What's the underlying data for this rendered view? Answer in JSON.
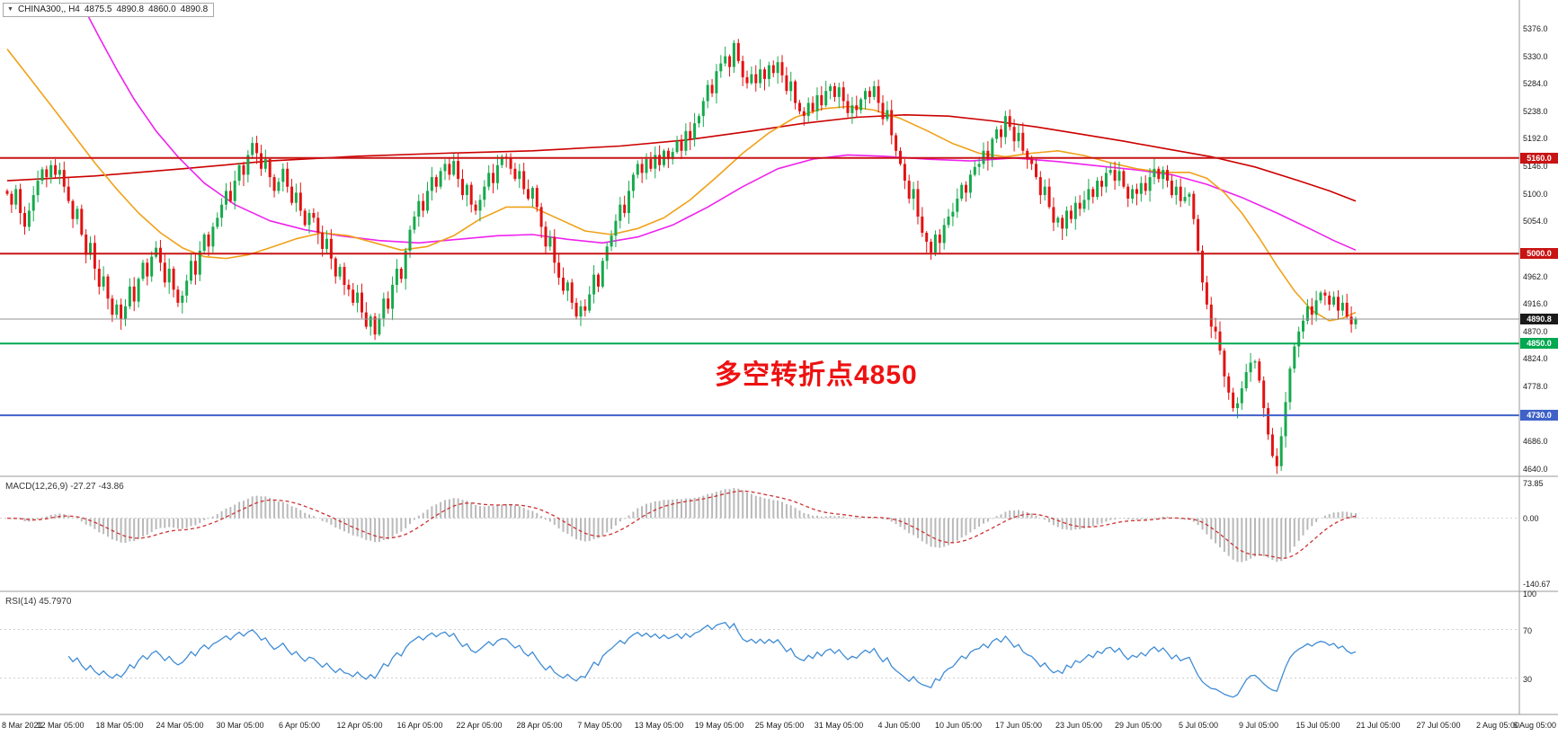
{
  "header": {
    "dropdown_icon": "▼",
    "symbol": "CHINA300,, H4",
    "open": "4875.5",
    "high": "4890.8",
    "low": "4860.0",
    "close": "4890.8"
  },
  "annotation": {
    "text": "多空转折点4850"
  },
  "colors": {
    "candle_up": "#17A94D",
    "candle_down": "#E31212",
    "macd_histogram": "#B9B9B9",
    "macd_signal": "#CC3333",
    "rsi_line": "#3F8CD5",
    "annotation": "#EE1111",
    "divider": "#9A9A9A",
    "level_dotted": "#CFCFCF"
  },
  "chart_data": {
    "type": "candlestick",
    "symbol": "CHINA300",
    "timeframe": "H4",
    "title": "CHINA300 H4 candlestick chart with MACD and RSI",
    "price_axis": {
      "max": 5424,
      "min": 4628,
      "ticks": [
        "5376.0",
        "5330.0",
        "5284.0",
        "5238.0",
        "5192.0",
        "5146.0",
        "5100.0",
        "5054.0",
        "4962.0",
        "4916.0",
        "4870.0",
        "4824.0",
        "4778.0",
        "4686.0",
        "4640.0"
      ]
    },
    "candles": {
      "first_open": 5105,
      "closes": [
        5100,
        5082,
        5108,
        5068,
        5045,
        5072,
        5098,
        5122,
        5141,
        5128,
        5148,
        5132,
        5140,
        5112,
        5088,
        5058,
        5075,
        5032,
        4998,
        5018,
        4975,
        4945,
        4962,
        4925,
        4898,
        4915,
        4890,
        4912,
        4945,
        4920,
        4958,
        4985,
        4962,
        4995,
        5010,
        4985,
        4952,
        4975,
        4940,
        4918,
        4930,
        4955,
        4988,
        4965,
        5005,
        5032,
        5012,
        5045,
        5060,
        5082,
        5105,
        5088,
        5122,
        5148,
        5132,
        5165,
        5185,
        5168,
        5142,
        5158,
        5128,
        5105,
        5120,
        5142,
        5112,
        5085,
        5102,
        5072,
        5048,
        5068,
        5060,
        5035,
        5008,
        5025,
        4992,
        4962,
        4978,
        4948,
        4940,
        4918,
        4935,
        4902,
        4878,
        4895,
        4865,
        4892,
        4925,
        4908,
        4948,
        4975,
        4958,
        5005,
        5040,
        5062,
        5088,
        5072,
        5105,
        5128,
        5112,
        5138,
        5150,
        5132,
        5155,
        5125,
        5098,
        5115,
        5082,
        5072,
        5090,
        5112,
        5135,
        5118,
        5148,
        5162,
        5160,
        5142,
        5125,
        5138,
        5108,
        5092,
        5110,
        5078,
        5045,
        5012,
        5028,
        4985,
        4960,
        4938,
        4952,
        4918,
        4895,
        4912,
        4905,
        4932,
        4965,
        4945,
        4988,
        5012,
        5030,
        5055,
        5082,
        5068,
        5105,
        5132,
        5150,
        5135,
        5158,
        5142,
        5165,
        5148,
        5172,
        5158,
        5170,
        5188,
        5172,
        5205,
        5192,
        5218,
        5230,
        5255,
        5282,
        5268,
        5305,
        5318,
        5330,
        5312,
        5352,
        5322,
        5295,
        5285,
        5300,
        5285,
        5308,
        5292,
        5315,
        5302,
        5320,
        5298,
        5272,
        5288,
        5252,
        5238,
        5230,
        5252,
        5238,
        5265,
        5248,
        5272,
        5280,
        5262,
        5278,
        5255,
        5235,
        5248,
        5240,
        5258,
        5272,
        5262,
        5280,
        5252,
        5225,
        5240,
        5198,
        5172,
        5150,
        5122,
        5092,
        5108,
        5062,
        5035,
        5020,
        5002,
        5032,
        5018,
        5048,
        5062,
        5070,
        5092,
        5115,
        5102,
        5132,
        5145,
        5150,
        5172,
        5158,
        5192,
        5208,
        5195,
        5230,
        5212,
        5188,
        5202,
        5172,
        5158,
        5150,
        5128,
        5098,
        5112,
        5078,
        5052,
        5060,
        5042,
        5072,
        5058,
        5085,
        5075,
        5090,
        5108,
        5095,
        5122,
        5112,
        5135,
        5140,
        5122,
        5138,
        5112,
        5092,
        5108,
        5100,
        5118,
        5105,
        5128,
        5142,
        5125,
        5140,
        5122,
        5098,
        5112,
        5088,
        5095,
        5100,
        5058,
        5005,
        4952,
        4915,
        4878,
        4870,
        4838,
        4795,
        4768,
        4742,
        4750,
        4775,
        4802,
        4818,
        4820,
        4788,
        4742,
        4698,
        4662,
        4645,
        4695,
        4752,
        4808,
        4845,
        4870,
        4888,
        4912,
        4898,
        4922,
        4935,
        4930,
        4915,
        4928,
        4905,
        4918,
        4895,
        4882,
        4890.8
      ]
    },
    "overlays": {
      "hlines": [
        {
          "price": 5160.0,
          "label": "5160.0",
          "color": "#C81414",
          "width": 2
        },
        {
          "price": 5000.0,
          "label": "5000.0",
          "color": "#C81414",
          "width": 2
        },
        {
          "price": 4890.8,
          "label": "4890.8",
          "color": "#1A1A1A",
          "line_color": "#909090",
          "width": 1
        },
        {
          "price": 4850.0,
          "label": "4850.0",
          "color": "#00A84F",
          "width": 2
        },
        {
          "price": 4730.0,
          "label": "4730.0",
          "color": "#3F62C9",
          "width": 2
        }
      ],
      "ma_lines": [
        {
          "name": "ma-slow-red",
          "color": "#CC0000",
          "points": [
            [
              0,
              5122
            ],
            [
              20,
              5130
            ],
            [
              40,
              5142
            ],
            [
              60,
              5155
            ],
            [
              80,
              5163
            ],
            [
              100,
              5168
            ],
            [
              120,
              5172
            ],
            [
              140,
              5180
            ],
            [
              155,
              5190
            ],
            [
              170,
              5205
            ],
            [
              182,
              5218
            ],
            [
              194,
              5228
            ],
            [
              205,
              5232
            ],
            [
              215,
              5230
            ],
            [
              225,
              5222
            ],
            [
              235,
              5212
            ],
            [
              245,
              5200
            ],
            [
              255,
              5188
            ],
            [
              265,
              5175
            ],
            [
              275,
              5162
            ],
            [
              285,
              5145
            ],
            [
              295,
              5122
            ],
            [
              302,
              5105
            ],
            [
              308,
              5088
            ]
          ]
        },
        {
          "name": "ma-medium-magenta",
          "color": "#EE22EE",
          "points": [
            [
              17,
              5418
            ],
            [
              21,
              5362
            ],
            [
              25,
              5308
            ],
            [
              29,
              5258
            ],
            [
              34,
              5205
            ],
            [
              39,
              5162
            ],
            [
              45,
              5118
            ],
            [
              52,
              5082
            ],
            [
              60,
              5055
            ],
            [
              68,
              5040
            ],
            [
              76,
              5030
            ],
            [
              85,
              5022
            ],
            [
              94,
              5018
            ],
            [
              103,
              5024
            ],
            [
              112,
              5030
            ],
            [
              120,
              5032
            ],
            [
              128,
              5024
            ],
            [
              136,
              5018
            ],
            [
              144,
              5028
            ],
            [
              152,
              5048
            ],
            [
              160,
              5078
            ],
            [
              168,
              5112
            ],
            [
              176,
              5142
            ],
            [
              184,
              5158
            ],
            [
              192,
              5165
            ],
            [
              200,
              5163
            ],
            [
              210,
              5158
            ],
            [
              220,
              5155
            ],
            [
              230,
              5160
            ],
            [
              240,
              5154
            ],
            [
              250,
              5146
            ],
            [
              258,
              5140
            ],
            [
              266,
              5132
            ],
            [
              274,
              5116
            ],
            [
              282,
              5094
            ],
            [
              290,
              5068
            ],
            [
              298,
              5040
            ],
            [
              303,
              5022
            ],
            [
              308,
              5006
            ]
          ]
        },
        {
          "name": "ma-fast-orange",
          "color": "#F0A118",
          "points": [
            [
              0,
              5342
            ],
            [
              5,
              5295
            ],
            [
              10,
              5248
            ],
            [
              15,
              5200
            ],
            [
              20,
              5152
            ],
            [
              25,
              5108
            ],
            [
              30,
              5068
            ],
            [
              35,
              5035
            ],
            [
              40,
              5010
            ],
            [
              45,
              4995
            ],
            [
              50,
              4992
            ],
            [
              55,
              4998
            ],
            [
              60,
              5010
            ],
            [
              66,
              5025
            ],
            [
              72,
              5035
            ],
            [
              78,
              5030
            ],
            [
              84,
              5018
            ],
            [
              90,
              5006
            ],
            [
              96,
              5012
            ],
            [
              102,
              5030
            ],
            [
              108,
              5058
            ],
            [
              114,
              5078
            ],
            [
              120,
              5078
            ],
            [
              126,
              5058
            ],
            [
              132,
              5038
            ],
            [
              138,
              5032
            ],
            [
              144,
              5042
            ],
            [
              150,
              5060
            ],
            [
              156,
              5090
            ],
            [
              162,
              5128
            ],
            [
              168,
              5168
            ],
            [
              174,
              5202
            ],
            [
              180,
              5228
            ],
            [
              186,
              5242
            ],
            [
              192,
              5246
            ],
            [
              198,
              5240
            ],
            [
              204,
              5226
            ],
            [
              210,
              5206
            ],
            [
              216,
              5184
            ],
            [
              222,
              5168
            ],
            [
              228,
              5162
            ],
            [
              234,
              5168
            ],
            [
              240,
              5172
            ],
            [
              246,
              5164
            ],
            [
              252,
              5152
            ],
            [
              258,
              5142
            ],
            [
              264,
              5136
            ],
            [
              270,
              5136
            ],
            [
              274,
              5126
            ],
            [
              278,
              5102
            ],
            [
              282,
              5068
            ],
            [
              286,
              5026
            ],
            [
              290,
              4980
            ],
            [
              294,
              4938
            ],
            [
              298,
              4905
            ],
            [
              302,
              4888
            ],
            [
              305,
              4892
            ],
            [
              308,
              4902
            ]
          ]
        }
      ]
    },
    "indicators": {
      "macd": {
        "name": "MACD(12,26,9)",
        "values": "-27.27 -43.86",
        "ticks": [
          "73.85",
          "0.00",
          "-140.67"
        ],
        "range": [
          -155,
          85
        ],
        "periods": [
          12,
          26,
          9
        ]
      },
      "rsi": {
        "name": "RSI(14)",
        "value": "45.7970",
        "ticks": [
          "100",
          "70",
          "30"
        ],
        "levels": [
          70,
          30
        ],
        "period": 14,
        "range": [
          0,
          100
        ],
        "color": "#3F8CD5"
      }
    },
    "time_labels": [
      "8 Mar 2021",
      "12 Mar 05:00",
      "18 Mar 05:00",
      "24 Mar 05:00",
      "30 Mar 05:00",
      "6 Apr 05:00",
      "12 Apr 05:00",
      "16 Apr 05:00",
      "22 Apr 05:00",
      "28 Apr 05:00",
      "7 May 05:00",
      "13 May 05:00",
      "19 May 05:00",
      "25 May 05:00",
      "31 May 05:00",
      "4 Jun 05:00",
      "10 Jun 05:00",
      "17 Jun 05:00",
      "23 Jun 05:00",
      "29 Jun 05:00",
      "5 Jul 05:00",
      "9 Jul 05:00",
      "15 Jul 05:00",
      "21 Jul 05:00",
      "27 Jul 05:00",
      "2 Aug 05:00",
      "6 Aug 05:00"
    ]
  }
}
